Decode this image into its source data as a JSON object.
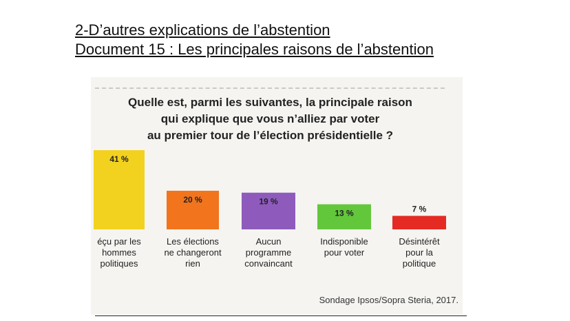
{
  "slide": {
    "heading": "2-D’autres explications de l’abstention",
    "subheading": "Document 15 : Les principales raisons de l’abstention"
  },
  "figure": {
    "question_lines": [
      "Quelle est, parmi les suivantes, la principale raison",
      "qui explique que vous n’alliez par voter",
      "au premier tour de l’élection présidentielle ?"
    ],
    "source": "Sondage Ipsos/Sopra Steria, 2017."
  },
  "chart_data": {
    "type": "bar",
    "title": "Quelle est, parmi les suivantes, la principale raison qui explique que vous n’alliez par voter au premier tour de l’élection présidentielle ?",
    "xlabel": "",
    "ylabel": "",
    "ylim": [
      0,
      41
    ],
    "grid": false,
    "categories": [
      [
        "éçu par les",
        "hommes",
        "politiques"
      ],
      [
        "Les élections",
        "ne changeront",
        "rien"
      ],
      [
        "Aucun",
        "programme",
        "convaincant"
      ],
      [
        "Indisponible",
        "pour voter"
      ],
      [
        "Désintérêt",
        "pour la",
        "politique"
      ]
    ],
    "values": [
      41,
      20,
      19,
      13,
      7
    ],
    "value_labels": [
      "41 %",
      "20 %",
      "19 %",
      "13 %",
      "7 %"
    ],
    "colors": [
      "#f2d21e",
      "#f2741d",
      "#8e5bbd",
      "#63c73c",
      "#e52a23"
    ]
  }
}
